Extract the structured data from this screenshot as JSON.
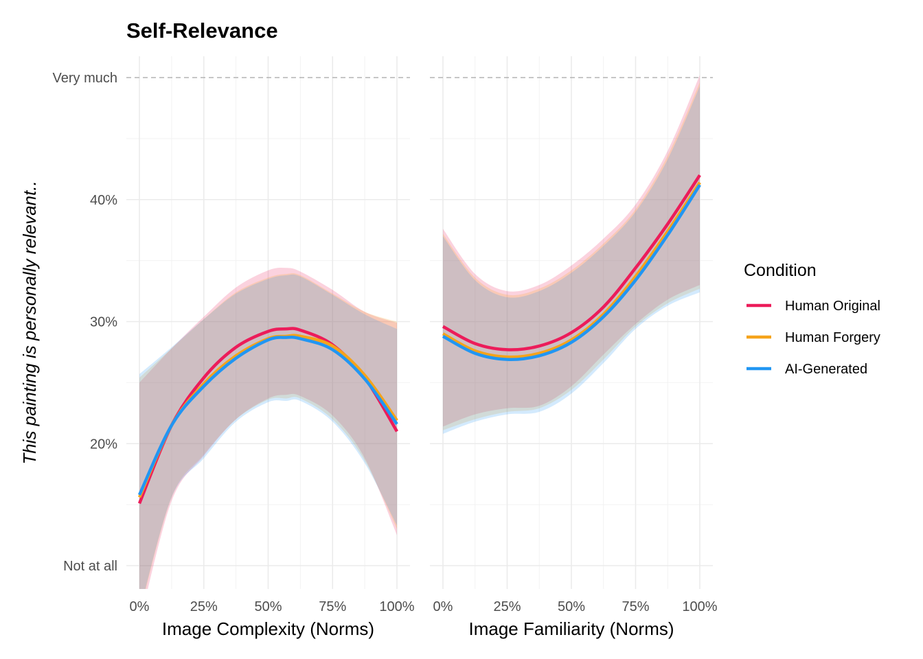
{
  "chart_data": {
    "type": "line",
    "title": "Self-Relevance",
    "ylabel": "This painting is personally relevant..",
    "ylim": [
      8,
      51.7
    ],
    "y_ticks": [
      {
        "value": 10,
        "label": "Not at all"
      },
      {
        "value": 20,
        "label": "20%"
      },
      {
        "value": 30,
        "label": "30%"
      },
      {
        "value": 40,
        "label": "40%"
      },
      {
        "value": 50,
        "label": "Very much"
      }
    ],
    "reference_line": {
      "value": 50,
      "style": "dashed",
      "color": "#b3b3b3"
    },
    "grid": true,
    "legend": {
      "title": "Condition",
      "position": "right",
      "entries": [
        {
          "name": "Human Original",
          "color": "#ec1c5a"
        },
        {
          "name": "Human Forgery",
          "color": "#f5a31a"
        },
        {
          "name": "AI-Generated",
          "color": "#2196f3"
        }
      ]
    },
    "panels": [
      {
        "xlabel": "Image Complexity (Norms)",
        "xlim": [
          -5,
          107
        ],
        "x_ticks": [
          {
            "value": 0,
            "label": "0%"
          },
          {
            "value": 25,
            "label": "25%"
          },
          {
            "value": 50,
            "label": "50%"
          },
          {
            "value": 75,
            "label": "75%"
          },
          {
            "value": 100,
            "label": "100%"
          }
        ],
        "x": [
          0,
          12.5,
          25,
          37.5,
          50,
          57,
          62.5,
          75,
          87.5,
          100
        ],
        "series": [
          {
            "name": "Human Original",
            "values": [
              15.1,
              21.5,
              25.4,
              27.9,
              29.2,
              29.4,
              29.3,
              28.1,
              25.4,
              21.0
            ],
            "upper": [
              25.0,
              27.8,
              30.4,
              32.8,
              34.2,
              34.4,
              34.1,
              32.6,
              30.8,
              29.9
            ],
            "lower": [
              5.2,
              15.3,
              19.0,
              22.0,
              23.7,
              24.0,
              23.9,
              22.3,
              18.8,
              12.5
            ]
          },
          {
            "name": "Human Forgery",
            "values": [
              15.6,
              21.5,
              24.9,
              27.2,
              28.6,
              28.8,
              28.8,
              28.0,
              25.6,
              21.9
            ],
            "upper": [
              25.4,
              27.8,
              30.2,
              32.4,
              33.6,
              33.9,
              33.8,
              32.3,
              30.8,
              30.0
            ],
            "lower": [
              6.0,
              15.6,
              19.1,
              22.0,
              23.6,
              23.7,
              23.7,
              22.0,
              18.6,
              13.0
            ]
          },
          {
            "name": "AI-Generated",
            "values": [
              15.8,
              21.5,
              24.7,
              27.0,
              28.5,
              28.7,
              28.6,
              27.7,
              25.3,
              21.6
            ],
            "upper": [
              25.7,
              27.9,
              30.2,
              32.3,
              33.5,
              33.8,
              33.7,
              32.2,
              30.6,
              29.4
            ],
            "lower": [
              6.2,
              15.6,
              18.8,
              21.8,
              23.4,
              23.5,
              23.5,
              21.8,
              18.4,
              13.3
            ]
          }
        ]
      },
      {
        "xlabel": "Image Familiarity (Norms)",
        "xlim": [
          -5,
          107
        ],
        "x_ticks": [
          {
            "value": 0,
            "label": "0%"
          },
          {
            "value": 25,
            "label": "25%"
          },
          {
            "value": 50,
            "label": "50%"
          },
          {
            "value": 75,
            "label": "75%"
          },
          {
            "value": 100,
            "label": "100%"
          }
        ],
        "x": [
          0,
          12.5,
          25,
          37.5,
          50,
          62.5,
          75,
          87.5,
          100
        ],
        "series": [
          {
            "name": "Human Original",
            "values": [
              29.6,
              28.2,
              27.7,
              28.0,
              29.1,
              31.2,
              34.4,
              38.0,
              42.0
            ],
            "upper": [
              37.6,
              33.9,
              32.5,
              33.0,
              34.6,
              36.8,
              39.6,
              44.0,
              50.2
            ],
            "lower": [
              21.4,
              22.4,
              22.9,
              23.1,
              24.7,
              27.3,
              29.8,
              31.8,
              33.0
            ]
          },
          {
            "name": "Human Forgery",
            "values": [
              29.0,
              27.6,
              27.1,
              27.4,
              28.5,
              30.6,
              33.7,
              37.4,
              41.4
            ],
            "upper": [
              37.2,
              33.6,
              32.2,
              32.7,
              34.2,
              36.4,
              39.2,
              43.6,
              49.6
            ],
            "lower": [
              21.1,
              22.0,
              22.6,
              22.9,
              24.4,
              26.9,
              29.6,
              31.5,
              32.7
            ]
          },
          {
            "name": "AI-Generated",
            "values": [
              28.8,
              27.4,
              26.9,
              27.2,
              28.3,
              30.4,
              33.4,
              37.1,
              41.2
            ],
            "upper": [
              37.0,
              33.4,
              32.0,
              32.5,
              34.0,
              36.2,
              39.0,
              43.3,
              49.3
            ],
            "lower": [
              20.8,
              21.8,
              22.4,
              22.6,
              24.1,
              26.6,
              29.4,
              31.3,
              32.4
            ]
          }
        ]
      }
    ]
  }
}
